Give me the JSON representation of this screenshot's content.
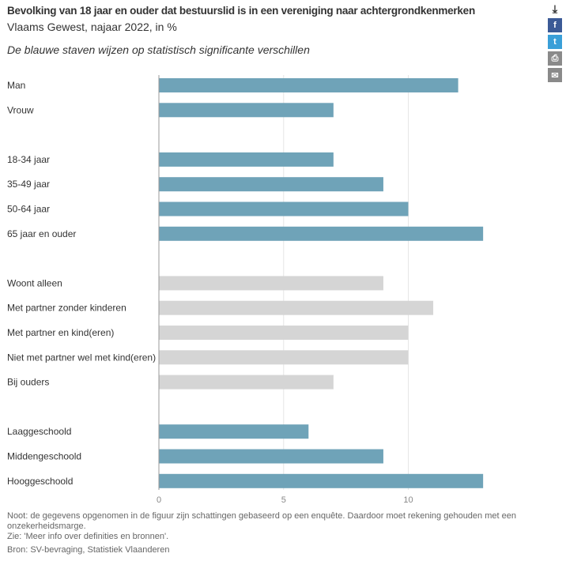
{
  "header": {
    "title": "Bevolking van 18 jaar en ouder dat bestuurslid is in een vereniging naar achtergrondkenmerken",
    "subtitle": "Vlaams Gewest, najaar 2022, in %",
    "description": "De blauwe staven wijzen op statistisch significante verschillen"
  },
  "toolbar": {
    "icons": [
      "download-icon",
      "facebook-icon",
      "twitter-icon",
      "print-icon",
      "email-icon"
    ]
  },
  "chart_data": {
    "type": "bar",
    "orientation": "horizontal",
    "xlim": [
      0,
      13
    ],
    "xticks": [
      0,
      5,
      10
    ],
    "xtick_labels": [
      "0",
      "5",
      "10"
    ],
    "grid": true,
    "colors": {
      "significant": "#6fa3b8",
      "not_significant": "#d5d5d5"
    },
    "groups": [
      [
        {
          "label": "Man",
          "value": 12,
          "significant": true
        },
        {
          "label": "Vrouw",
          "value": 7,
          "significant": true
        }
      ],
      [
        {
          "label": "18-34 jaar",
          "value": 7,
          "significant": true
        },
        {
          "label": "35-49 jaar",
          "value": 9,
          "significant": true
        },
        {
          "label": "50-64 jaar",
          "value": 10,
          "significant": true
        },
        {
          "label": "65 jaar en ouder",
          "value": 13,
          "significant": true
        }
      ],
      [
        {
          "label": "Woont alleen",
          "value": 9,
          "significant": false
        },
        {
          "label": "Met partner zonder kinderen",
          "value": 11,
          "significant": false
        },
        {
          "label": "Met partner en kind(eren)",
          "value": 10,
          "significant": false
        },
        {
          "label": "Niet met partner wel met kind(eren)",
          "value": 10,
          "significant": false
        },
        {
          "label": "Bij ouders",
          "value": 7,
          "significant": false
        }
      ],
      [
        {
          "label": "Laaggeschoold",
          "value": 6,
          "significant": true
        },
        {
          "label": "Middengeschoold",
          "value": 9,
          "significant": true
        },
        {
          "label": "Hooggeschoold",
          "value": 13,
          "significant": true
        }
      ]
    ]
  },
  "footer": {
    "note_line1": "Noot: de gegevens opgenomen in de figuur zijn schattingen gebaseerd op een enquête. Daardoor moet rekening gehouden met een onzekerheidsmarge.",
    "note_line2": "Zie: 'Meer info over definities en bronnen'.",
    "source": "Bron: SV-bevraging, Statistiek Vlaanderen"
  }
}
